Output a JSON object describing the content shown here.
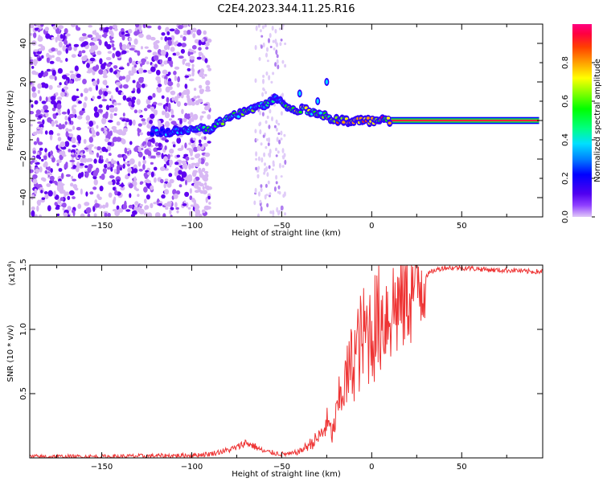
{
  "title": "C2E4.2023.344.11.25.R16",
  "chart_data": [
    {
      "type": "heatmap",
      "xlabel": "Height of straight line (km)",
      "ylabel": "Frequency (Hz)",
      "xlim": [
        -190,
        95
      ],
      "ylim": [
        -50,
        50
      ],
      "xticks": [
        -150,
        -100,
        -50,
        0,
        50
      ],
      "yticks": [
        -40,
        -20,
        0,
        20,
        40
      ],
      "colorbar": {
        "label": "Normalized spectral amplitude",
        "range": [
          0,
          1
        ],
        "ticks": [
          "0.0",
          "0.2",
          "0.4",
          "0.6",
          "0.8"
        ],
        "colors": [
          "#e0c8f8",
          "#9040ff",
          "#5000f0",
          "#0000ff",
          "#0080ff",
          "#00e0ff",
          "#00ff80",
          "#00ff00",
          "#80ff00",
          "#ffff00",
          "#ffa000",
          "#ff4000",
          "#ff0040",
          "#ff0080"
        ]
      },
      "noise_region_x": [
        -190,
        -90
      ],
      "noise_band_x": [
        -65,
        -48
      ],
      "track": [
        {
          "x": -122,
          "f": -6,
          "amp": 0.35
        },
        {
          "x": -110,
          "f": -6,
          "amp": 0.4
        },
        {
          "x": -100,
          "f": -5,
          "amp": 0.45
        },
        {
          "x": -90,
          "f": -4,
          "amp": 0.55
        },
        {
          "x": -80,
          "f": 1,
          "amp": 0.6
        },
        {
          "x": -70,
          "f": 5,
          "amp": 0.55
        },
        {
          "x": -60,
          "f": 8,
          "amp": 0.5
        },
        {
          "x": -52,
          "f": 12,
          "amp": 0.45
        },
        {
          "x": -45,
          "f": 5,
          "amp": 0.6
        },
        {
          "x": -38,
          "f": 6,
          "amp": 0.7
        },
        {
          "x": -30,
          "f": 4,
          "amp": 0.6
        },
        {
          "x": -20,
          "f": 0,
          "amp": 0.75
        },
        {
          "x": -10,
          "f": 0,
          "amp": 0.8
        },
        {
          "x": 0,
          "f": 0,
          "amp": 0.85
        },
        {
          "x": 10,
          "f": 0,
          "amp": 0.85
        },
        {
          "x": 30,
          "f": 0,
          "amp": 0.9
        },
        {
          "x": 50,
          "f": 0,
          "amp": 0.9
        },
        {
          "x": 70,
          "f": 0,
          "amp": 0.9
        },
        {
          "x": 93,
          "f": 0,
          "amp": 0.9
        }
      ]
    },
    {
      "type": "line",
      "xlabel": "Height of straight line (km)",
      "ylabel": "SNR (10 * v/v)",
      "yscale_label": "(x10",
      "yscale_exp": "4",
      "xlim": [
        -190,
        95
      ],
      "ylim": [
        0,
        1.5
      ],
      "xticks": [
        -150,
        -100,
        -50,
        0,
        50
      ],
      "yticks": [
        "0.5",
        "1.0",
        "1.5"
      ],
      "color": "#ee3333",
      "series": [
        {
          "x": [
            -190,
            -150,
            -100,
            -90,
            -80,
            -75,
            -70,
            -65,
            -60,
            -50,
            -45,
            -40,
            -35,
            -30,
            -27,
            -25,
            -22,
            -20,
            -18,
            -16,
            -14,
            -12,
            -10,
            -8,
            -6,
            -4,
            -2,
            0,
            3,
            6,
            10,
            15,
            20,
            25,
            30,
            35,
            40,
            50,
            60,
            70,
            80,
            85,
            90,
            95
          ],
          "y": [
            0.01,
            0.01,
            0.02,
            0.03,
            0.06,
            0.08,
            0.12,
            0.09,
            0.05,
            0.03,
            0.03,
            0.05,
            0.1,
            0.15,
            0.2,
            0.28,
            0.18,
            0.3,
            0.45,
            0.55,
            0.6,
            0.7,
            0.78,
            0.85,
            0.9,
            0.95,
            0.98,
            1.0,
            1.05,
            1.1,
            1.15,
            1.2,
            1.28,
            1.35,
            1.42,
            1.46,
            1.48,
            1.48,
            1.47,
            1.46,
            1.46,
            1.45,
            1.45,
            1.45
          ]
        }
      ]
    }
  ]
}
